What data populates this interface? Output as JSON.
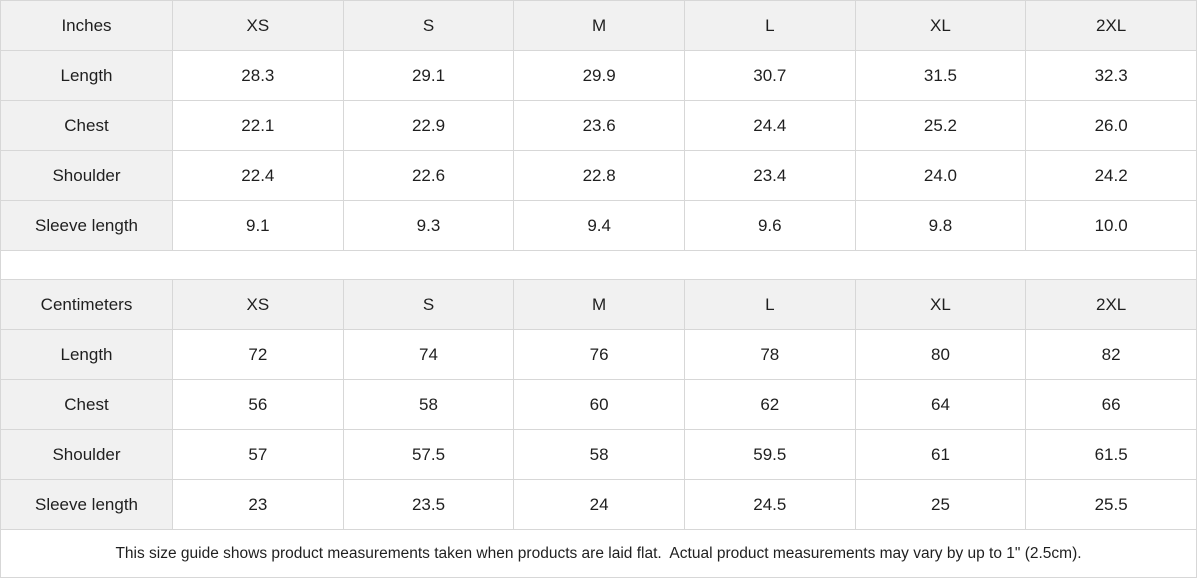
{
  "colors": {
    "header_cell_bg": "#f1f1f1",
    "grid_border": "#d7d7d7",
    "text": "#1f1f1f",
    "cell_bg": "#ffffff"
  },
  "inches": {
    "unit_label": "Inches",
    "sizes": [
      "XS",
      "S",
      "M",
      "L",
      "XL",
      "2XL"
    ],
    "rows": [
      {
        "label": "Length",
        "values": [
          "28.3",
          "29.1",
          "29.9",
          "30.7",
          "31.5",
          "32.3"
        ]
      },
      {
        "label": "Chest",
        "values": [
          "22.1",
          "22.9",
          "23.6",
          "24.4",
          "25.2",
          "26.0"
        ]
      },
      {
        "label": "Shoulder",
        "values": [
          "22.4",
          "22.6",
          "22.8",
          "23.4",
          "24.0",
          "24.2"
        ]
      },
      {
        "label": "Sleeve length",
        "values": [
          "9.1",
          "9.3",
          "9.4",
          "9.6",
          "9.8",
          "10.0"
        ]
      }
    ]
  },
  "centimeters": {
    "unit_label": "Centimeters",
    "sizes": [
      "XS",
      "S",
      "M",
      "L",
      "XL",
      "2XL"
    ],
    "rows": [
      {
        "label": "Length",
        "values": [
          "72",
          "74",
          "76",
          "78",
          "80",
          "82"
        ]
      },
      {
        "label": "Chest",
        "values": [
          "56",
          "58",
          "60",
          "62",
          "64",
          "66"
        ]
      },
      {
        "label": "Shoulder",
        "values": [
          "57",
          "57.5",
          "58",
          "59.5",
          "61",
          "61.5"
        ]
      },
      {
        "label": "Sleeve length",
        "values": [
          "23",
          "23.5",
          "24",
          "24.5",
          "25",
          "25.5"
        ]
      }
    ]
  },
  "footer": {
    "note": "This size guide shows product measurements taken when products are laid flat.  Actual product measurements may vary by up to 1\" (2.5cm)."
  }
}
